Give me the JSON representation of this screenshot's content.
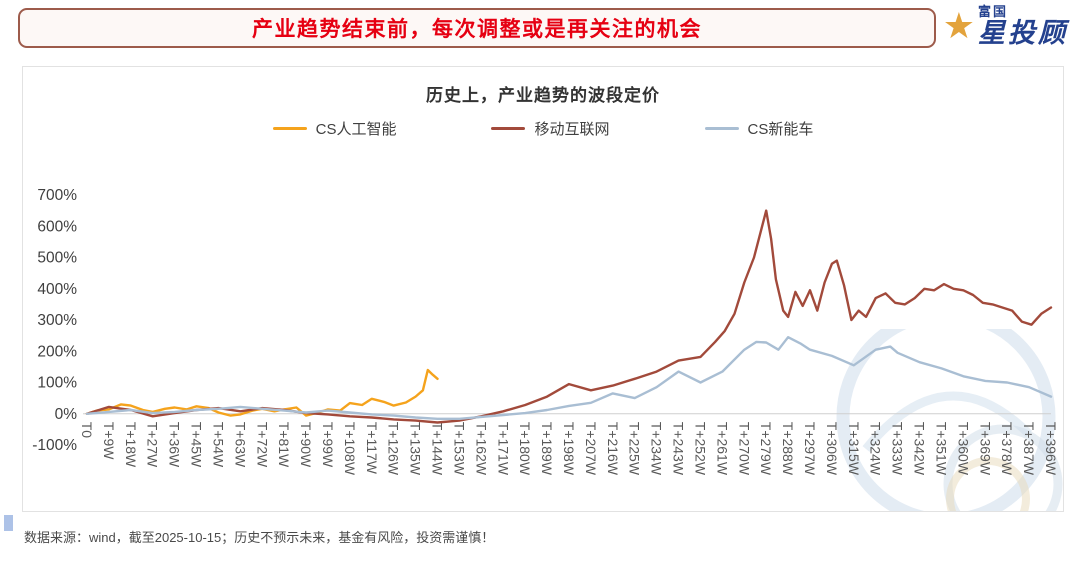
{
  "header": {
    "title": "产业趋势结束前，每次调整或是再关注的机会"
  },
  "brand": {
    "name_top": "富国",
    "name_main": "星投顾",
    "star_color": "#e3a33c",
    "blue": "#24418e"
  },
  "footer": {
    "source": "数据来源：wind，截至2025-10-15；历史不预示未来，基金有风险，投资需谨慎！"
  },
  "chart_data": {
    "type": "line",
    "title": "历史上，产业趋势的波段定价",
    "xlabel": "",
    "ylabel": "",
    "x_unit": "weeks since T0",
    "xlim": [
      0,
      396
    ],
    "ylim": [
      -100,
      700
    ],
    "grid": false,
    "legend_position": "top",
    "y_tick_suffix": "%",
    "y_ticks": [
      700,
      600,
      500,
      400,
      300,
      200,
      100,
      0,
      -100
    ],
    "x_tick_weeks": [
      0,
      9,
      18,
      27,
      36,
      45,
      54,
      63,
      72,
      81,
      90,
      99,
      108,
      117,
      126,
      135,
      144,
      153,
      162,
      171,
      180,
      189,
      198,
      207,
      216,
      225,
      234,
      243,
      252,
      261,
      270,
      279,
      288,
      297,
      306,
      315,
      324,
      333,
      342,
      351,
      360,
      369,
      378,
      387,
      396
    ],
    "x_tick_labels": [
      "T0",
      "T+9W",
      "T+18W",
      "T+27W",
      "T+36W",
      "T+45W",
      "T+54W",
      "T+63W",
      "T+72W",
      "T+81W",
      "T+90W",
      "T+99W",
      "T+108W",
      "T+117W",
      "T+126W",
      "T+135W",
      "T+144W",
      "T+153W",
      "T+162W",
      "T+171W",
      "T+180W",
      "T+189W",
      "T+198W",
      "T+207W",
      "T+216W",
      "T+225W",
      "T+234W",
      "T+243W",
      "T+252W",
      "T+261W",
      "T+270W",
      "T+279W",
      "T+288W",
      "T+297W",
      "T+306W",
      "T+315W",
      "T+324W",
      "T+333W",
      "T+342W",
      "T+351W",
      "T+360W",
      "T+369W",
      "T+378W",
      "T+387W",
      "T+396W"
    ],
    "series": [
      {
        "name": "CS人工智能",
        "color": "#f5a31c",
        "x": [
          0,
          4,
          9,
          14,
          18,
          23,
          27,
          32,
          36,
          41,
          45,
          50,
          54,
          59,
          63,
          68,
          72,
          77,
          81,
          86,
          90,
          95,
          99,
          104,
          108,
          113,
          117,
          122,
          126,
          131,
          135,
          138,
          140,
          142,
          144
        ],
        "values": [
          0,
          10,
          14,
          30,
          26,
          12,
          6,
          16,
          20,
          14,
          24,
          18,
          4,
          -6,
          -2,
          10,
          16,
          8,
          14,
          20,
          -6,
          4,
          14,
          10,
          34,
          28,
          48,
          38,
          26,
          36,
          55,
          75,
          140,
          125,
          112
        ]
      },
      {
        "name": "移动互联网",
        "color": "#a24a3b",
        "x": [
          0,
          9,
          18,
          27,
          36,
          45,
          54,
          63,
          72,
          81,
          90,
          99,
          108,
          117,
          126,
          135,
          144,
          153,
          162,
          171,
          180,
          189,
          198,
          207,
          216,
          225,
          234,
          243,
          252,
          258,
          262,
          266,
          270,
          274,
          277,
          279,
          281,
          283,
          286,
          288,
          291,
          294,
          297,
          300,
          303,
          306,
          308,
          311,
          314,
          317,
          320,
          324,
          328,
          332,
          336,
          340,
          344,
          348,
          352,
          356,
          360,
          364,
          368,
          372,
          376,
          380,
          384,
          388,
          392,
          396
        ],
        "values": [
          0,
          22,
          12,
          -8,
          2,
          12,
          18,
          8,
          18,
          12,
          2,
          -2,
          -8,
          -12,
          -18,
          -22,
          -28,
          -22,
          -8,
          8,
          28,
          55,
          95,
          75,
          90,
          112,
          135,
          170,
          182,
          230,
          265,
          320,
          420,
          500,
          590,
          650,
          560,
          430,
          330,
          310,
          390,
          345,
          395,
          330,
          420,
          480,
          490,
          410,
          300,
          330,
          310,
          370,
          385,
          355,
          350,
          370,
          400,
          395,
          415,
          400,
          395,
          380,
          355,
          350,
          340,
          330,
          295,
          285,
          320,
          340
        ]
      },
      {
        "name": "CS新能车",
        "color": "#a9bed3",
        "x": [
          0,
          9,
          18,
          27,
          36,
          45,
          54,
          63,
          72,
          81,
          90,
          99,
          108,
          117,
          126,
          135,
          144,
          153,
          162,
          171,
          180,
          189,
          198,
          207,
          216,
          225,
          234,
          243,
          252,
          261,
          270,
          275,
          279,
          284,
          288,
          293,
          297,
          306,
          315,
          324,
          330,
          333,
          342,
          351,
          360,
          369,
          378,
          387,
          396
        ],
        "values": [
          0,
          6,
          12,
          2,
          6,
          12,
          16,
          22,
          16,
          10,
          4,
          10,
          4,
          -2,
          -6,
          -12,
          -16,
          -16,
          -10,
          -4,
          2,
          12,
          25,
          35,
          65,
          50,
          85,
          135,
          100,
          135,
          205,
          230,
          228,
          205,
          245,
          225,
          205,
          185,
          155,
          205,
          215,
          195,
          165,
          145,
          120,
          105,
          100,
          85,
          55
        ]
      }
    ]
  }
}
